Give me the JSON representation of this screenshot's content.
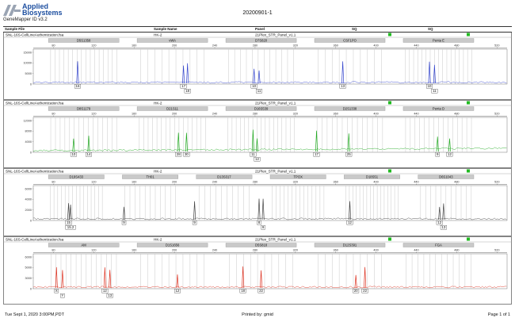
{
  "header": {
    "brand_line1": "Applied",
    "brand_line2": "Biosystems",
    "app_version": "GeneMapper ID v3.2",
    "run_title": "20200901-1",
    "brand_color": "#1d4fa0"
  },
  "columns": {
    "sample_file": "Sample File",
    "sample_name": "Sample Name",
    "panel": "Panel",
    "sq": "SQ",
    "sq2": "SQ"
  },
  "x_axis_ticks": [
    "80",
    "120",
    "160",
    "200",
    "240",
    "280",
    "320",
    "360",
    "400",
    "440",
    "480",
    "520"
  ],
  "panels": [
    {
      "file": "SNL-16S-CellLineAuthentication.fsa",
      "sample": "HK-2",
      "panel": "21Plex_STR_Panel_v1.1",
      "color": "#3344cc",
      "y_ticks": [
        "15000",
        "10000",
        "5000",
        "0"
      ],
      "loci": [
        "D5S1358",
        "vWA",
        "D7S820",
        "CSF1PO",
        "Penta E"
      ],
      "alleles": [
        {
          "label": "16",
          "size": 104
        },
        {
          "label": "17",
          "size": 209
        },
        {
          "label": "18",
          "size": 213
        },
        {
          "label": "10",
          "size": 279
        },
        {
          "label": "11",
          "size": 284
        },
        {
          "label": "13",
          "size": 367
        },
        {
          "label": "10",
          "size": 453
        },
        {
          "label": "11",
          "size": 458
        }
      ]
    },
    {
      "file": "SNL-16S-CellLineAuthentication.fsa",
      "sample": "HK-2",
      "panel": "21Plex_STR_Panel_v1.1",
      "color": "#22aa22",
      "y_ticks": [
        "12000",
        "8000",
        "4000",
        "0"
      ],
      "loci": [
        "D8S1179",
        "D21S11",
        "D16S539",
        "D2S1338",
        "Penta D"
      ],
      "alleles": [
        {
          "label": "10",
          "size": 100
        },
        {
          "label": "14",
          "size": 115
        },
        {
          "label": "28",
          "size": 204
        },
        {
          "label": "30",
          "size": 212
        },
        {
          "label": "11",
          "size": 278
        },
        {
          "label": "12",
          "size": 282
        },
        {
          "label": "17",
          "size": 341
        },
        {
          "label": "25",
          "size": 373
        },
        {
          "label": "9",
          "size": 461
        },
        {
          "label": "12",
          "size": 473
        }
      ]
    },
    {
      "file": "SNL-16S-CellLineAuthentication.fsa",
      "sample": "HK-2",
      "panel": "21Plex_STR_Panel_v1.1",
      "color": "#444444",
      "y_ticks": [
        "6000",
        "4000",
        "2000",
        "0"
      ],
      "loci": [
        "D19S433",
        "TH01",
        "D13S317",
        "TPOX",
        "D18S51",
        "D6S1043"
      ],
      "alleles": [
        {
          "label": "15",
          "size": 95
        },
        {
          "label": "15.2",
          "size": 97
        },
        {
          "label": "9",
          "size": 150
        },
        {
          "label": "9",
          "size": 220
        },
        {
          "label": "8",
          "size": 284
        },
        {
          "label": "9",
          "size": 288
        },
        {
          "label": "12",
          "size": 374
        },
        {
          "label": "12",
          "size": 463
        },
        {
          "label": "13",
          "size": 467
        }
      ]
    },
    {
      "file": "SNL-16S-CellLineAuthentication.fsa",
      "sample": "HK-2",
      "panel": "21Plex_STR_Panel_v1.1",
      "color": "#dd3322",
      "y_ticks": [
        "6000",
        "5000",
        "3000",
        "0"
      ],
      "loci": [
        "AM",
        "D1S1656",
        "D5S818",
        "D12S391",
        "FGA"
      ],
      "alleles": [
        {
          "label": "X",
          "size": 83
        },
        {
          "label": "Y",
          "size": 89
        },
        {
          "label": "12",
          "size": 131
        },
        {
          "label": "13",
          "size": 136
        },
        {
          "label": "12",
          "size": 203
        },
        {
          "label": "18",
          "size": 268
        },
        {
          "label": "22",
          "size": 286
        },
        {
          "label": "20",
          "size": 380
        },
        {
          "label": "22",
          "size": 389
        }
      ]
    }
  ],
  "footer": {
    "date": "Tue Sept 1, 2020  3:00PM,PDT",
    "printed_by": "Printed by: gmid",
    "page": "Page 1 of 1"
  }
}
